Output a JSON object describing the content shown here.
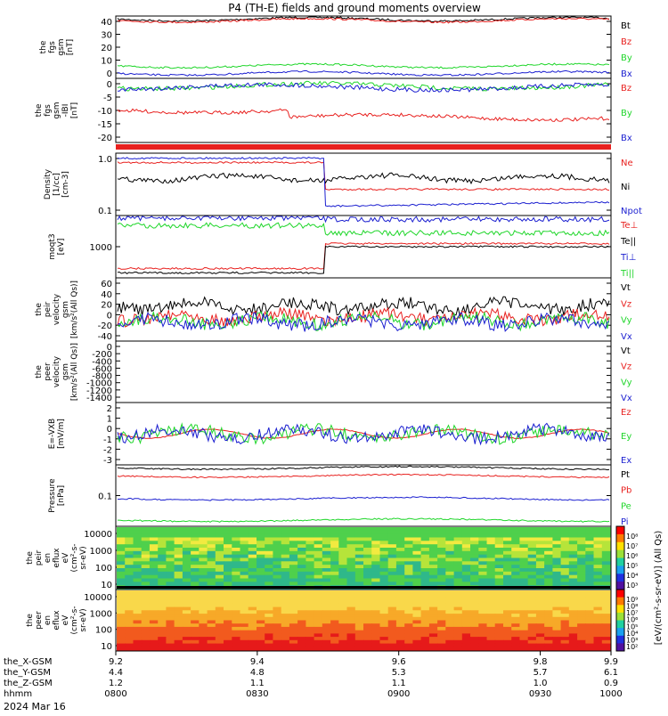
{
  "title": "P4 (TH-E) fields and ground moments overview",
  "date": "2024 Mar 16",
  "colors": {
    "black": "#000000",
    "red": "#e8211f",
    "green": "#1fd62a",
    "blue": "#1b1fd0",
    "frame": "#000000"
  },
  "chart_data": [
    {
      "type": "line",
      "name": "fgs-gsm",
      "ylabel": [
        "the",
        "fgs",
        "gsm",
        "[nT]"
      ],
      "yticks": [
        "40",
        "30",
        "20",
        "10",
        "0"
      ],
      "ylim": [
        -5,
        47
      ],
      "series": [
        {
          "name": "Bt",
          "color": "black",
          "level": 40
        },
        {
          "name": "Bz",
          "color": "red",
          "level": 40
        },
        {
          "name": "By",
          "color": "green",
          "level": 3
        },
        {
          "name": "Bx",
          "color": "blue",
          "level": -2
        }
      ]
    },
    {
      "type": "line",
      "name": "fgs-gsm-detail",
      "ylabel": [
        "the",
        "fgs",
        "gsm",
        "-IBI",
        "[nT]"
      ],
      "yticks": [
        "0",
        "-5",
        "-10",
        "-15",
        "-20"
      ],
      "ylim": [
        -23,
        1
      ],
      "series": [
        {
          "name": "Bz",
          "color": "red",
          "level": -14
        },
        {
          "name": "By",
          "color": "green",
          "level": -1
        },
        {
          "name": "Bx",
          "color": "blue",
          "level": -1
        }
      ]
    },
    {
      "type": "line",
      "name": "density",
      "ylabel": [
        "Density",
        "[1/cc]",
        "[cm-3]"
      ],
      "yticks": [
        "1.0",
        "0.1"
      ],
      "ylim": [
        0.02,
        1.5
      ],
      "log": true,
      "series": [
        {
          "name": "Ne",
          "color": "red"
        },
        {
          "name": "Ni",
          "color": "black"
        },
        {
          "name": "Npot",
          "color": "blue"
        }
      ]
    },
    {
      "type": "line",
      "name": "temperature",
      "ylabel": [
        "moqt3",
        "[eV]"
      ],
      "yticks": [
        "1000"
      ],
      "log": true,
      "series": [
        {
          "name": "Te⊥",
          "color": "red"
        },
        {
          "name": "Te||",
          "color": "black"
        },
        {
          "name": "Ti⊥",
          "color": "blue"
        },
        {
          "name": "Ti||",
          "color": "green"
        }
      ]
    },
    {
      "type": "line",
      "name": "peir-velocity",
      "ylabel": [
        "the",
        "peir",
        "velocity",
        "gsm",
        "[km/s²(All Qs)]"
      ],
      "yticks": [
        "60",
        "40",
        "20",
        "0",
        "-20",
        "-40"
      ],
      "ylim": [
        -55,
        75
      ],
      "series": [
        {
          "name": "Vt",
          "color": "black"
        },
        {
          "name": "Vz",
          "color": "red"
        },
        {
          "name": "Vy",
          "color": "green"
        },
        {
          "name": "Vx",
          "color": "blue"
        }
      ]
    },
    {
      "type": "line",
      "name": "peer-velocity",
      "ylabel": [
        "the",
        "peer",
        "velocity",
        "gsm",
        "[km/s²(All Qs)]"
      ],
      "yticks": [
        "0",
        "-200",
        "-400",
        "-600",
        "-800",
        "-1000",
        "-1200",
        "-1400"
      ],
      "ylim": [
        -1450,
        50
      ],
      "series": [
        {
          "name": "Vt",
          "color": "black"
        },
        {
          "name": "Vz",
          "color": "red"
        },
        {
          "name": "Vy",
          "color": "green"
        },
        {
          "name": "Vx",
          "color": "blue"
        }
      ]
    },
    {
      "type": "line",
      "name": "e-field",
      "ylabel": [
        "E=-VXB",
        "[mV/m]"
      ],
      "yticks": [
        "2",
        "1",
        "0",
        "-1",
        "-2",
        "-3"
      ],
      "ylim": [
        -3.2,
        2.7
      ],
      "series": [
        {
          "name": "Ez",
          "color": "red"
        },
        {
          "name": "Ey",
          "color": "green"
        },
        {
          "name": "Ex",
          "color": "blue"
        }
      ]
    },
    {
      "type": "line",
      "name": "pressure",
      "ylabel": [
        "Pressure",
        "[nPa]"
      ],
      "yticks": [
        "0.1"
      ],
      "log": true,
      "series": [
        {
          "name": "Pt",
          "color": "black"
        },
        {
          "name": "Pb",
          "color": "red"
        },
        {
          "name": "Pe",
          "color": "green"
        },
        {
          "name": "Pi",
          "color": "blue"
        }
      ]
    },
    {
      "type": "heatmap",
      "name": "peir-spectrogram",
      "ylabel": [
        "the",
        "peir",
        "en",
        "eflux",
        "eV",
        "(cm²-s-",
        "sr-eV)"
      ],
      "yticks": [
        "10000",
        "1000",
        "100",
        "10"
      ],
      "colorbar": {
        "ticks": [
          "10⁸",
          "10⁷",
          "10⁶",
          "10⁵",
          "10⁴",
          "10³"
        ],
        "label": "[eV/(cm²-s-sr-eV)] (All Qs)"
      }
    },
    {
      "type": "heatmap",
      "name": "peer-spectrogram",
      "ylabel": [
        "the",
        "peer",
        "en",
        "eflux",
        "eV",
        "(cm²-s-",
        "sr-eV)"
      ],
      "yticks": [
        "10000",
        "1000",
        "100",
        "10"
      ],
      "colorbar": {
        "ticks": [
          "10⁹",
          "10⁸",
          "10⁷",
          "10⁶",
          "10⁵",
          "10⁴",
          "10³",
          "10²"
        ],
        "label": "[eV/(cm²-s-sr-eV)]"
      }
    }
  ],
  "xaxis": {
    "rows": [
      {
        "label": "the_X-GSM",
        "values": [
          "9.2",
          "9.4",
          "9.6",
          "9.8",
          "9.9"
        ]
      },
      {
        "label": "the_Y-GSM",
        "values": [
          "4.4",
          "4.8",
          "5.3",
          "5.7",
          "6.1"
        ]
      },
      {
        "label": "the_Z-GSM",
        "values": [
          "1.2",
          "1.1",
          "1.1",
          "1.0",
          "0.9"
        ]
      },
      {
        "label": "hhmm",
        "values": [
          "0800",
          "0830",
          "0900",
          "0930",
          "1000"
        ]
      }
    ]
  },
  "colorbar_label": "[eV/(cm²-s-sr-eV)] (All Qs)"
}
